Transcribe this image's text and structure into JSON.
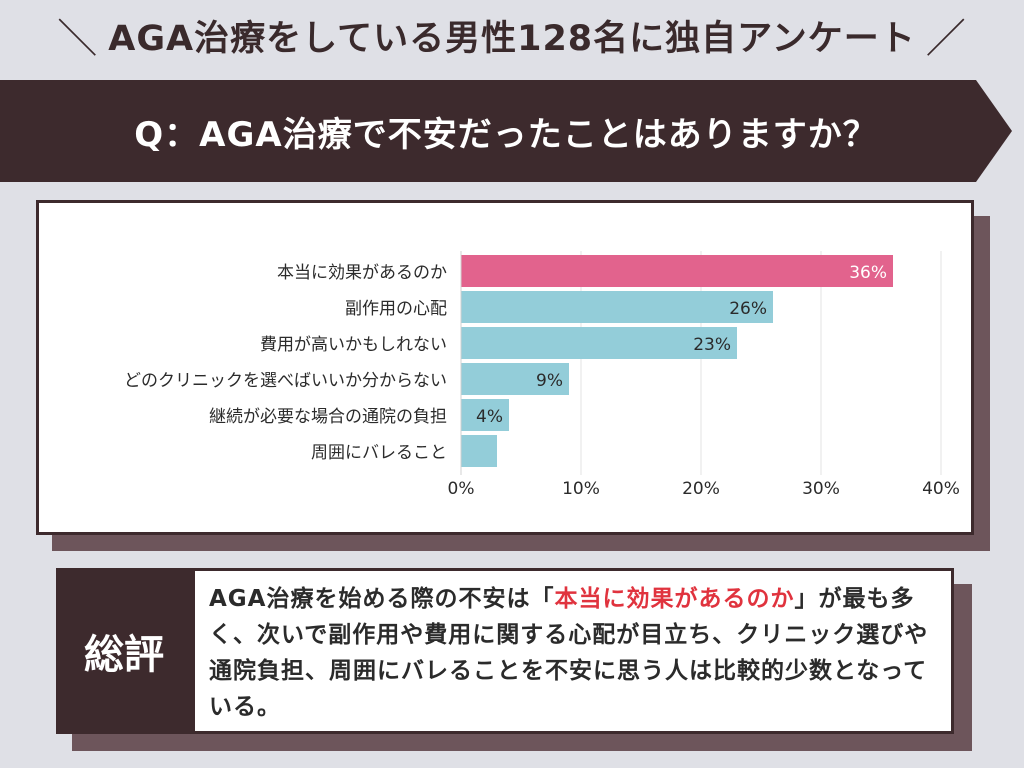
{
  "header": {
    "slash_left": "＼",
    "title": "AGA治療をしている男性128名に独自アンケート",
    "slash_right": "／"
  },
  "question": "Q：AGA治療で不安だったことはありますか？",
  "chart_data": {
    "type": "bar",
    "orientation": "horizontal",
    "categories": [
      "本当に効果があるのか",
      "副作用の心配",
      "費用が高いかもしれない",
      "どのクリニックを選べばいいか分からない",
      "継続が必要な場合の通院の負担",
      "周囲にバレること"
    ],
    "values": [
      36,
      26,
      23,
      9,
      4,
      3
    ],
    "data_labels": [
      "36%",
      "26%",
      "23%",
      "9%",
      "4%",
      ""
    ],
    "xlim": [
      0,
      40
    ],
    "xticks": [
      0,
      10,
      20,
      30,
      40
    ],
    "xtick_labels": [
      "0%",
      "10%",
      "20%",
      "30%",
      "40%"
    ],
    "grid": "vertical",
    "colors": {
      "highlight": "#e2638d",
      "bar": "#93cdd9",
      "highlight_label": "#ffffff",
      "label": "#2b2b2b"
    },
    "highlight_index": 0
  },
  "summary": {
    "label": "総評",
    "text_before": "AGA治療を始める際の不安は「",
    "highlight": "本当に効果があるのか",
    "text_after": "」が最も多く、次いで副作用や費用に関する心配が目立ち、クリニック選びや通院負担、周囲にバレることを不安に思う人は比較的少数となっている。"
  },
  "colors": {
    "background": "#dfe0e6",
    "dark": "#3d2a2d",
    "shadow": "#6d555b",
    "accent_red": "#e0333e"
  }
}
